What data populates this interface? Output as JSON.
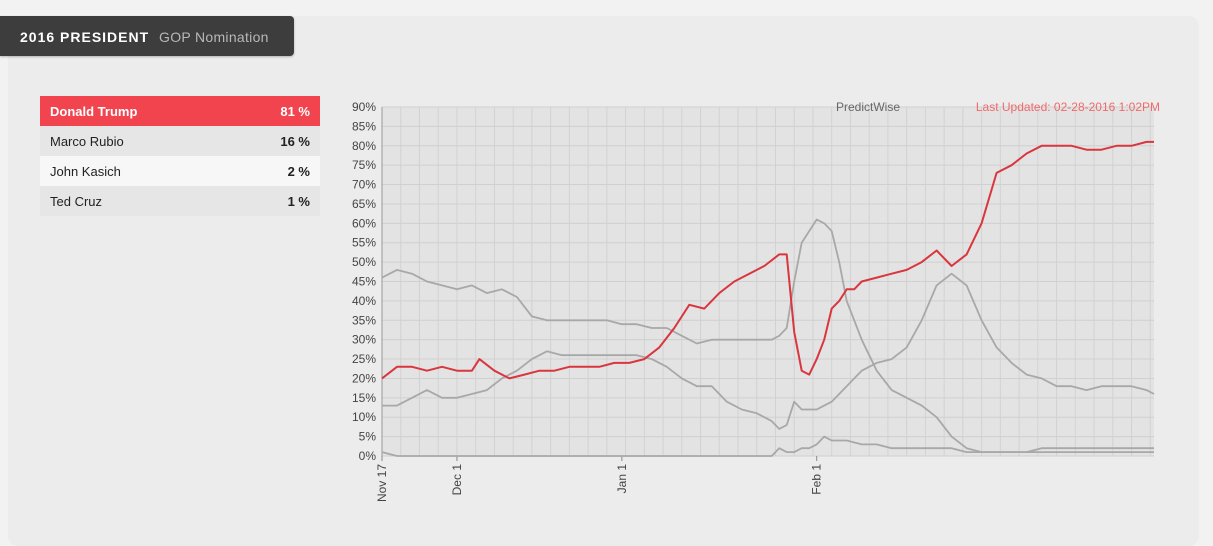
{
  "header": {
    "title": "2016 PRESIDENT",
    "subtitle": "GOP Nomination"
  },
  "candidates": [
    {
      "name": "Donald Trump",
      "percent": "81 %"
    },
    {
      "name": "Marco Rubio",
      "percent": "16 %"
    },
    {
      "name": "John Kasich",
      "percent": "2 %"
    },
    {
      "name": "Ted Cruz",
      "percent": "1 %"
    }
  ],
  "chart_meta": {
    "credit": "PredictWise",
    "updated": "Last Updated: 02-28-2016 1:02PM",
    "leader_color": "#d9363e",
    "other_color": "#a8a8a8"
  },
  "chart_data": {
    "type": "line",
    "ylim": [
      0,
      90
    ],
    "xlim": [
      0,
      103
    ],
    "y_ticks": [
      "0%",
      "5%",
      "10%",
      "15%",
      "20%",
      "25%",
      "30%",
      "35%",
      "40%",
      "45%",
      "50%",
      "55%",
      "60%",
      "65%",
      "70%",
      "75%",
      "80%",
      "85%",
      "90%"
    ],
    "x_ticks": [
      {
        "label": "Nov 17",
        "day": 0
      },
      {
        "label": "Dec 1",
        "day": 10
      },
      {
        "label": "Jan 1",
        "day": 32
      },
      {
        "label": "Feb 1",
        "day": 58
      }
    ],
    "grid": true,
    "series": [
      {
        "name": "Donald Trump",
        "x": [
          0,
          2,
          4,
          6,
          8,
          10,
          12,
          13,
          15,
          17,
          19,
          21,
          23,
          25,
          27,
          29,
          31,
          33,
          35,
          37,
          39,
          41,
          43,
          45,
          47,
          49,
          51,
          53,
          54,
          55,
          56,
          57,
          58,
          59,
          60,
          61,
          62,
          63,
          64,
          66,
          68,
          70,
          72,
          74,
          76,
          78,
          80,
          82,
          84,
          86,
          88,
          90,
          92,
          94,
          96,
          98,
          100,
          102,
          103
        ],
        "y": [
          20,
          23,
          23,
          22,
          23,
          22,
          22,
          25,
          22,
          20,
          21,
          22,
          22,
          23,
          23,
          23,
          24,
          24,
          25,
          28,
          33,
          39,
          38,
          42,
          45,
          47,
          49,
          52,
          52,
          32,
          22,
          21,
          25,
          30,
          38,
          40,
          43,
          43,
          45,
          46,
          47,
          48,
          50,
          53,
          49,
          52,
          60,
          73,
          75,
          78,
          80,
          80,
          80,
          79,
          79,
          80,
          80,
          81,
          81
        ]
      },
      {
        "name": "Marco Rubio",
        "x": [
          0,
          2,
          4,
          6,
          8,
          10,
          12,
          14,
          16,
          18,
          20,
          22,
          24,
          26,
          28,
          30,
          32,
          34,
          36,
          38,
          40,
          42,
          44,
          46,
          48,
          50,
          52,
          53,
          54,
          55,
          56,
          57,
          58,
          59,
          60,
          61,
          62,
          64,
          66,
          68,
          70,
          72,
          74,
          76,
          78,
          80,
          82,
          84,
          86,
          88,
          90,
          92,
          94,
          96,
          98,
          100,
          102,
          103
        ],
        "y": [
          13,
          13,
          15,
          17,
          15,
          15,
          16,
          17,
          20,
          22,
          25,
          27,
          26,
          26,
          26,
          26,
          26,
          26,
          25,
          23,
          20,
          18,
          18,
          14,
          12,
          11,
          9,
          7,
          8,
          14,
          12,
          12,
          12,
          13,
          14,
          16,
          18,
          22,
          24,
          25,
          28,
          35,
          44,
          47,
          44,
          35,
          28,
          24,
          21,
          20,
          18,
          18,
          17,
          18,
          18,
          18,
          17,
          16
        ]
      },
      {
        "name": "Ted Cruz",
        "x": [
          0,
          2,
          4,
          6,
          8,
          10,
          12,
          14,
          16,
          18,
          20,
          22,
          24,
          26,
          28,
          30,
          32,
          34,
          36,
          38,
          40,
          42,
          44,
          46,
          48,
          50,
          52,
          53,
          54,
          55,
          56,
          57,
          58,
          59,
          60,
          61,
          62,
          64,
          66,
          68,
          70,
          72,
          74,
          76,
          78,
          80,
          82,
          84,
          86,
          88,
          90,
          92,
          94,
          96,
          98,
          100,
          102,
          103
        ],
        "y": [
          46,
          48,
          47,
          45,
          44,
          43,
          44,
          42,
          43,
          41,
          36,
          35,
          35,
          35,
          35,
          35,
          34,
          34,
          33,
          33,
          31,
          29,
          30,
          30,
          30,
          30,
          30,
          31,
          33,
          45,
          55,
          58,
          61,
          60,
          58,
          50,
          40,
          30,
          22,
          17,
          15,
          13,
          10,
          5,
          2,
          1,
          1,
          1,
          1,
          1,
          1,
          1,
          1,
          1,
          1,
          1,
          1,
          1
        ]
      },
      {
        "name": "John Kasich",
        "x": [
          0,
          2,
          4,
          6,
          8,
          10,
          12,
          14,
          16,
          18,
          20,
          22,
          24,
          26,
          28,
          30,
          32,
          34,
          36,
          38,
          40,
          42,
          44,
          46,
          48,
          50,
          52,
          53,
          54,
          55,
          56,
          57,
          58,
          59,
          60,
          61,
          62,
          64,
          66,
          68,
          70,
          72,
          74,
          76,
          78,
          80,
          82,
          84,
          86,
          88,
          90,
          92,
          94,
          96,
          98,
          100,
          102,
          103
        ],
        "y": [
          1,
          0,
          0,
          0,
          0,
          0,
          0,
          0,
          0,
          0,
          0,
          0,
          0,
          0,
          0,
          0,
          0,
          0,
          0,
          0,
          0,
          0,
          0,
          0,
          0,
          0,
          0,
          2,
          1,
          1,
          2,
          2,
          3,
          5,
          4,
          4,
          4,
          3,
          3,
          2,
          2,
          2,
          2,
          2,
          1,
          1,
          1,
          1,
          1,
          2,
          2,
          2,
          2,
          2,
          2,
          2,
          2,
          2
        ]
      }
    ]
  }
}
